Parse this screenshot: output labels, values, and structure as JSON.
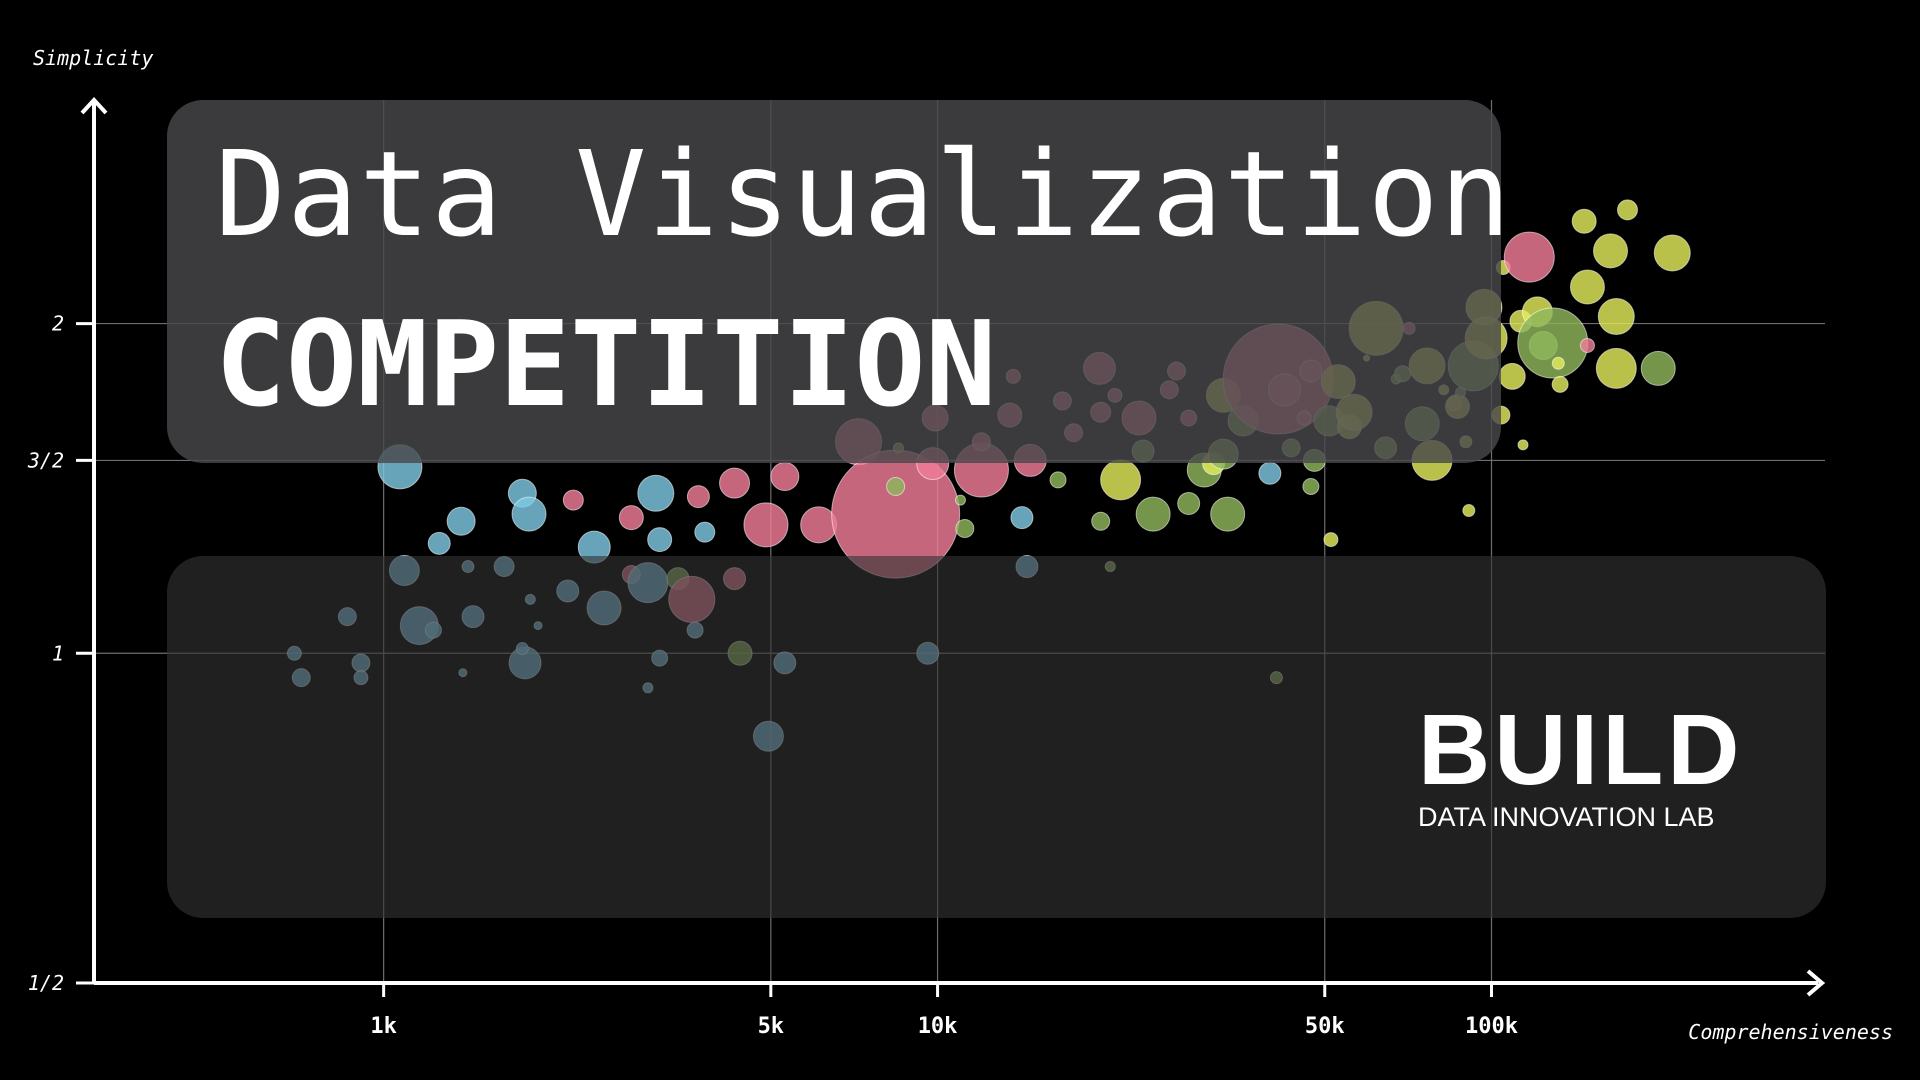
{
  "title": {
    "line1": "Data Visualization",
    "line2": "COMPETITION"
  },
  "brand": {
    "name": "BUILD",
    "subtitle": "DATA INNOVATION LAB"
  },
  "chart_data": {
    "type": "scatter",
    "subtype": "bubble",
    "xlabel": "Comprehensiveness",
    "ylabel": "Simplicity",
    "x_scale": "log",
    "y_scale": "log2",
    "xlim": [
      300,
      400000
    ],
    "ylim": [
      0.5,
      3.2
    ],
    "x_ticks": [
      {
        "value": 1000,
        "label": "1k"
      },
      {
        "value": 5000,
        "label": "5k"
      },
      {
        "value": 10000,
        "label": "10k"
      },
      {
        "value": 50000,
        "label": "50k"
      },
      {
        "value": 100000,
        "label": "100k"
      }
    ],
    "y_ticks": [
      {
        "value": 0.5,
        "label": "1/2"
      },
      {
        "value": 1,
        "label": "1"
      },
      {
        "value": 1.5,
        "label": "3/2"
      },
      {
        "value": 2,
        "label": "2"
      }
    ],
    "grid": true,
    "legend": "none",
    "colors": {
      "blue": "#7ec8e3",
      "pink": "#f07c98",
      "olive": "#8fb75a",
      "yellow": "#e3ec5c",
      "axis": "#ffffff",
      "grid": "#6e6e6e"
    },
    "points": [
      {
        "x": 690,
        "y": 1.0,
        "size": 7,
        "color": "blue"
      },
      {
        "x": 710,
        "y": 0.95,
        "size": 9,
        "color": "blue"
      },
      {
        "x": 860,
        "y": 1.08,
        "size": 9,
        "color": "blue"
      },
      {
        "x": 910,
        "y": 0.98,
        "size": 9,
        "color": "blue"
      },
      {
        "x": 910,
        "y": 0.95,
        "size": 7,
        "color": "blue"
      },
      {
        "x": 1070,
        "y": 1.48,
        "size": 22,
        "color": "blue"
      },
      {
        "x": 1090,
        "y": 1.19,
        "size": 15,
        "color": "blue"
      },
      {
        "x": 1160,
        "y": 1.06,
        "size": 19,
        "color": "blue"
      },
      {
        "x": 1230,
        "y": 1.05,
        "size": 8,
        "color": "blue"
      },
      {
        "x": 1260,
        "y": 1.26,
        "size": 11,
        "color": "blue"
      },
      {
        "x": 1380,
        "y": 1.32,
        "size": 14,
        "color": "blue"
      },
      {
        "x": 1390,
        "y": 0.96,
        "size": 4,
        "color": "blue"
      },
      {
        "x": 1420,
        "y": 1.2,
        "size": 6,
        "color": "blue"
      },
      {
        "x": 1450,
        "y": 1.08,
        "size": 11,
        "color": "blue"
      },
      {
        "x": 1650,
        "y": 1.2,
        "size": 10,
        "color": "blue"
      },
      {
        "x": 1780,
        "y": 1.4,
        "size": 14,
        "color": "blue"
      },
      {
        "x": 1800,
        "y": 0.98,
        "size": 16,
        "color": "blue"
      },
      {
        "x": 1780,
        "y": 1.01,
        "size": 6,
        "color": "blue"
      },
      {
        "x": 1830,
        "y": 1.34,
        "size": 17,
        "color": "blue"
      },
      {
        "x": 1840,
        "y": 1.12,
        "size": 5,
        "color": "blue"
      },
      {
        "x": 1900,
        "y": 1.06,
        "size": 4,
        "color": "blue"
      },
      {
        "x": 2150,
        "y": 1.14,
        "size": 11,
        "color": "blue"
      },
      {
        "x": 2200,
        "y": 1.38,
        "size": 10,
        "color": "pink"
      },
      {
        "x": 2400,
        "y": 1.25,
        "size": 16,
        "color": "blue"
      },
      {
        "x": 2500,
        "y": 1.1,
        "size": 17,
        "color": "blue"
      },
      {
        "x": 2800,
        "y": 1.33,
        "size": 12,
        "color": "pink"
      },
      {
        "x": 2800,
        "y": 1.18,
        "size": 9,
        "color": "pink"
      },
      {
        "x": 3000,
        "y": 1.16,
        "size": 20,
        "color": "blue"
      },
      {
        "x": 3000,
        "y": 0.93,
        "size": 5,
        "color": "blue"
      },
      {
        "x": 3100,
        "y": 1.4,
        "size": 18,
        "color": "blue"
      },
      {
        "x": 3150,
        "y": 1.27,
        "size": 12,
        "color": "blue"
      },
      {
        "x": 3150,
        "y": 0.99,
        "size": 8,
        "color": "blue"
      },
      {
        "x": 3400,
        "y": 1.17,
        "size": 11,
        "color": "olive"
      },
      {
        "x": 3600,
        "y": 1.12,
        "size": 23,
        "color": "pink"
      },
      {
        "x": 3650,
        "y": 1.05,
        "size": 8,
        "color": "blue"
      },
      {
        "x": 3700,
        "y": 1.39,
        "size": 11,
        "color": "pink"
      },
      {
        "x": 3800,
        "y": 1.29,
        "size": 10,
        "color": "blue"
      },
      {
        "x": 4300,
        "y": 1.17,
        "size": 11,
        "color": "pink"
      },
      {
        "x": 4300,
        "y": 1.43,
        "size": 15,
        "color": "pink"
      },
      {
        "x": 4400,
        "y": 1.0,
        "size": 12,
        "color": "olive"
      },
      {
        "x": 4900,
        "y": 1.31,
        "size": 22,
        "color": "pink"
      },
      {
        "x": 4950,
        "y": 0.84,
        "size": 15,
        "color": "blue"
      },
      {
        "x": 5300,
        "y": 0.98,
        "size": 11,
        "color": "blue"
      },
      {
        "x": 5300,
        "y": 1.45,
        "size": 14,
        "color": "pink"
      },
      {
        "x": 6100,
        "y": 1.31,
        "size": 18,
        "color": "pink"
      },
      {
        "x": 7200,
        "y": 1.56,
        "size": 23,
        "color": "pink"
      },
      {
        "x": 8400,
        "y": 1.34,
        "size": 64,
        "color": "pink"
      },
      {
        "x": 8400,
        "y": 1.42,
        "size": 9,
        "color": "olive"
      },
      {
        "x": 8500,
        "y": 1.54,
        "size": 5,
        "color": "olive"
      },
      {
        "x": 9600,
        "y": 1.0,
        "size": 11,
        "color": "blue"
      },
      {
        "x": 9800,
        "y": 1.49,
        "size": 16,
        "color": "pink"
      },
      {
        "x": 9900,
        "y": 1.64,
        "size": 13,
        "color": "pink"
      },
      {
        "x": 11000,
        "y": 1.38,
        "size": 5,
        "color": "olive"
      },
      {
        "x": 11200,
        "y": 1.3,
        "size": 9,
        "color": "olive"
      },
      {
        "x": 12000,
        "y": 1.47,
        "size": 27,
        "color": "pink"
      },
      {
        "x": 12000,
        "y": 1.56,
        "size": 9,
        "color": "pink"
      },
      {
        "x": 13500,
        "y": 1.65,
        "size": 12,
        "color": "pink"
      },
      {
        "x": 13700,
        "y": 1.79,
        "size": 7,
        "color": "pink"
      },
      {
        "x": 14200,
        "y": 1.33,
        "size": 11,
        "color": "blue"
      },
      {
        "x": 14500,
        "y": 1.2,
        "size": 11,
        "color": "blue"
      },
      {
        "x": 14700,
        "y": 1.5,
        "size": 16,
        "color": "pink"
      },
      {
        "x": 16500,
        "y": 1.44,
        "size": 8,
        "color": "olive"
      },
      {
        "x": 16800,
        "y": 1.7,
        "size": 9,
        "color": "pink"
      },
      {
        "x": 17600,
        "y": 1.59,
        "size": 9,
        "color": "pink"
      },
      {
        "x": 19600,
        "y": 1.82,
        "size": 16,
        "color": "pink"
      },
      {
        "x": 19700,
        "y": 1.66,
        "size": 10,
        "color": "pink"
      },
      {
        "x": 19700,
        "y": 1.32,
        "size": 9,
        "color": "olive"
      },
      {
        "x": 20500,
        "y": 1.2,
        "size": 5,
        "color": "olive"
      },
      {
        "x": 20900,
        "y": 1.72,
        "size": 7,
        "color": "pink"
      },
      {
        "x": 21400,
        "y": 1.44,
        "size": 20,
        "color": "yellow"
      },
      {
        "x": 23100,
        "y": 1.64,
        "size": 17,
        "color": "pink"
      },
      {
        "x": 23500,
        "y": 1.53,
        "size": 11,
        "color": "olive"
      },
      {
        "x": 24500,
        "y": 1.34,
        "size": 17,
        "color": "olive"
      },
      {
        "x": 26200,
        "y": 1.74,
        "size": 9,
        "color": "pink"
      },
      {
        "x": 27000,
        "y": 1.81,
        "size": 9,
        "color": "pink"
      },
      {
        "x": 28400,
        "y": 1.64,
        "size": 8,
        "color": "pink"
      },
      {
        "x": 28400,
        "y": 1.37,
        "size": 11,
        "color": "olive"
      },
      {
        "x": 30300,
        "y": 1.47,
        "size": 17,
        "color": "olive"
      },
      {
        "x": 31500,
        "y": 1.49,
        "size": 11,
        "color": "yellow"
      },
      {
        "x": 32800,
        "y": 1.52,
        "size": 15,
        "color": "olive"
      },
      {
        "x": 32800,
        "y": 1.72,
        "size": 17,
        "color": "yellow"
      },
      {
        "x": 33400,
        "y": 1.34,
        "size": 17,
        "color": "olive"
      },
      {
        "x": 35600,
        "y": 1.63,
        "size": 15,
        "color": "olive"
      },
      {
        "x": 41200,
        "y": 1.78,
        "size": 55,
        "color": "pink"
      },
      {
        "x": 39800,
        "y": 1.46,
        "size": 11,
        "color": "blue"
      },
      {
        "x": 40900,
        "y": 0.95,
        "size": 6,
        "color": "olive"
      },
      {
        "x": 42300,
        "y": 1.74,
        "size": 16,
        "color": "pink"
      },
      {
        "x": 43500,
        "y": 1.54,
        "size": 9,
        "color": "olive"
      },
      {
        "x": 45900,
        "y": 1.64,
        "size": 7,
        "color": "pink"
      },
      {
        "x": 47200,
        "y": 1.81,
        "size": 11,
        "color": "pink"
      },
      {
        "x": 47200,
        "y": 1.42,
        "size": 8,
        "color": "olive"
      },
      {
        "x": 47900,
        "y": 1.5,
        "size": 11,
        "color": "olive"
      },
      {
        "x": 50900,
        "y": 1.63,
        "size": 15,
        "color": "olive"
      },
      {
        "x": 51300,
        "y": 1.27,
        "size": 7,
        "color": "yellow"
      },
      {
        "x": 52900,
        "y": 1.77,
        "size": 17,
        "color": "yellow"
      },
      {
        "x": 55400,
        "y": 1.61,
        "size": 12,
        "color": "yellow"
      },
      {
        "x": 56500,
        "y": 1.66,
        "size": 18,
        "color": "yellow"
      },
      {
        "x": 59500,
        "y": 1.86,
        "size": 3,
        "color": "yellow"
      },
      {
        "x": 61900,
        "y": 1.98,
        "size": 27,
        "color": "yellow"
      },
      {
        "x": 64400,
        "y": 1.54,
        "size": 11,
        "color": "olive"
      },
      {
        "x": 67300,
        "y": 1.78,
        "size": 5,
        "color": "olive"
      },
      {
        "x": 69100,
        "y": 1.8,
        "size": 8,
        "color": "olive"
      },
      {
        "x": 71000,
        "y": 1.98,
        "size": 6,
        "color": "pink"
      },
      {
        "x": 75000,
        "y": 1.62,
        "size": 17,
        "color": "olive"
      },
      {
        "x": 76500,
        "y": 1.83,
        "size": 18,
        "color": "yellow"
      },
      {
        "x": 78100,
        "y": 1.5,
        "size": 20,
        "color": "yellow"
      },
      {
        "x": 82000,
        "y": 1.74,
        "size": 5,
        "color": "yellow"
      },
      {
        "x": 85600,
        "y": 1.69,
        "size": 7,
        "color": "pink"
      },
      {
        "x": 86800,
        "y": 1.68,
        "size": 12,
        "color": "yellow"
      },
      {
        "x": 87900,
        "y": 1.73,
        "size": 5,
        "color": "olive"
      },
      {
        "x": 89900,
        "y": 1.56,
        "size": 6,
        "color": "yellow"
      },
      {
        "x": 91000,
        "y": 1.35,
        "size": 6,
        "color": "yellow"
      },
      {
        "x": 92700,
        "y": 1.83,
        "size": 25,
        "color": "olive"
      },
      {
        "x": 96900,
        "y": 2.07,
        "size": 18,
        "color": "yellow"
      },
      {
        "x": 97800,
        "y": 1.94,
        "size": 21,
        "color": "yellow"
      },
      {
        "x": 104000,
        "y": 1.65,
        "size": 9,
        "color": "yellow"
      },
      {
        "x": 105000,
        "y": 2.25,
        "size": 7,
        "color": "yellow"
      },
      {
        "x": 109000,
        "y": 1.79,
        "size": 13,
        "color": "yellow"
      },
      {
        "x": 113000,
        "y": 2.01,
        "size": 11,
        "color": "yellow"
      },
      {
        "x": 114000,
        "y": 1.55,
        "size": 5,
        "color": "yellow"
      },
      {
        "x": 117000,
        "y": 2.3,
        "size": 25,
        "color": "pink"
      },
      {
        "x": 121000,
        "y": 2.05,
        "size": 15,
        "color": "yellow"
      },
      {
        "x": 124000,
        "y": 1.91,
        "size": 14,
        "color": "olive"
      },
      {
        "x": 129000,
        "y": 1.92,
        "size": 35,
        "color": "olive"
      },
      {
        "x": 132000,
        "y": 1.84,
        "size": 6,
        "color": "yellow"
      },
      {
        "x": 133000,
        "y": 1.76,
        "size": 8,
        "color": "yellow"
      },
      {
        "x": 147000,
        "y": 2.48,
        "size": 12,
        "color": "yellow"
      },
      {
        "x": 149000,
        "y": 2.16,
        "size": 17,
        "color": "yellow"
      },
      {
        "x": 149000,
        "y": 1.91,
        "size": 7,
        "color": "pink"
      },
      {
        "x": 164000,
        "y": 2.33,
        "size": 17,
        "color": "yellow"
      },
      {
        "x": 168000,
        "y": 2.03,
        "size": 18,
        "color": "yellow"
      },
      {
        "x": 168000,
        "y": 1.82,
        "size": 20,
        "color": "yellow"
      },
      {
        "x": 176000,
        "y": 2.54,
        "size": 10,
        "color": "yellow"
      },
      {
        "x": 200000,
        "y": 1.82,
        "size": 17,
        "color": "olive"
      },
      {
        "x": 212000,
        "y": 2.32,
        "size": 18,
        "color": "yellow"
      }
    ]
  }
}
